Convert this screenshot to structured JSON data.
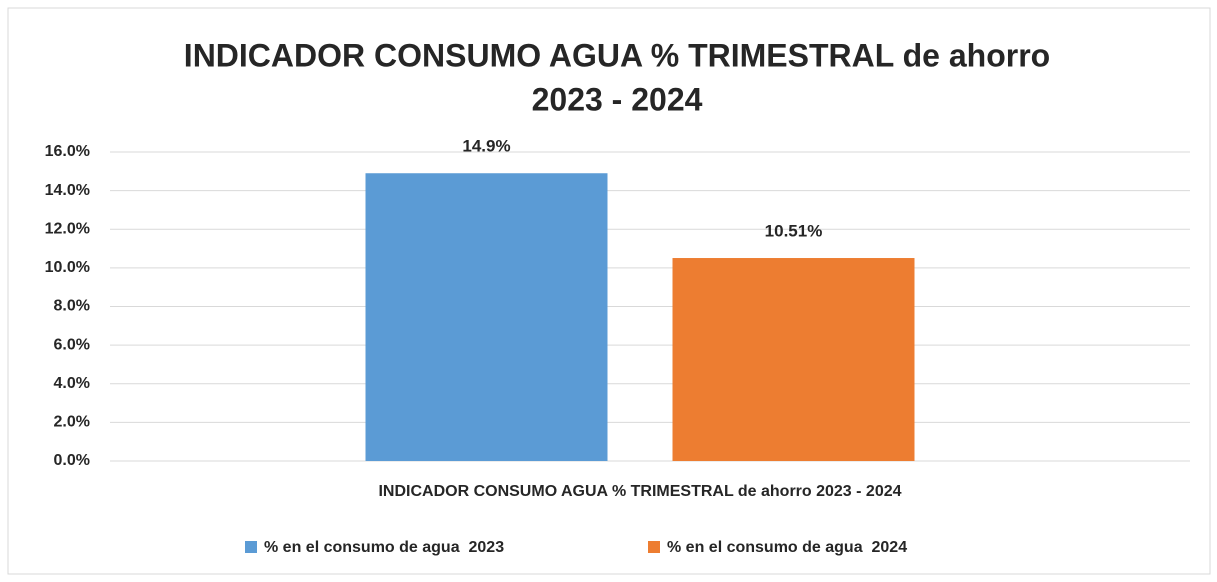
{
  "chart_data": {
    "type": "bar",
    "title": [
      "INDICADOR CONSUMO AGUA % TRIMESTRAL de ahorro",
      "2023 - 2024"
    ],
    "categories": [
      "INDICADOR CONSUMO AGUA % TRIMESTRAL de ahorro 2023 - 2024"
    ],
    "series": [
      {
        "name": "% en el consumo de agua  2023",
        "color": "#5b9bd5",
        "values": [
          14.9
        ],
        "value_labels": [
          "14.9%"
        ]
      },
      {
        "name": "% en el consumo de agua  2024",
        "color": "#ed7d31",
        "values": [
          10.51
        ],
        "value_labels": [
          "10.51%"
        ]
      }
    ],
    "ylim": [
      0,
      16
    ],
    "yticks": [
      {
        "value": 0,
        "label": "0.0%"
      },
      {
        "value": 2,
        "label": "2.0%"
      },
      {
        "value": 4,
        "label": "4.0%"
      },
      {
        "value": 6,
        "label": "6.0%"
      },
      {
        "value": 8,
        "label": "8.0%"
      },
      {
        "value": 10,
        "label": "10.0%"
      },
      {
        "value": 12,
        "label": "12.0%"
      },
      {
        "value": 14,
        "label": "14.0%"
      },
      {
        "value": 16,
        "label": "16.0%"
      }
    ],
    "grid": true,
    "legend": "bottom"
  }
}
